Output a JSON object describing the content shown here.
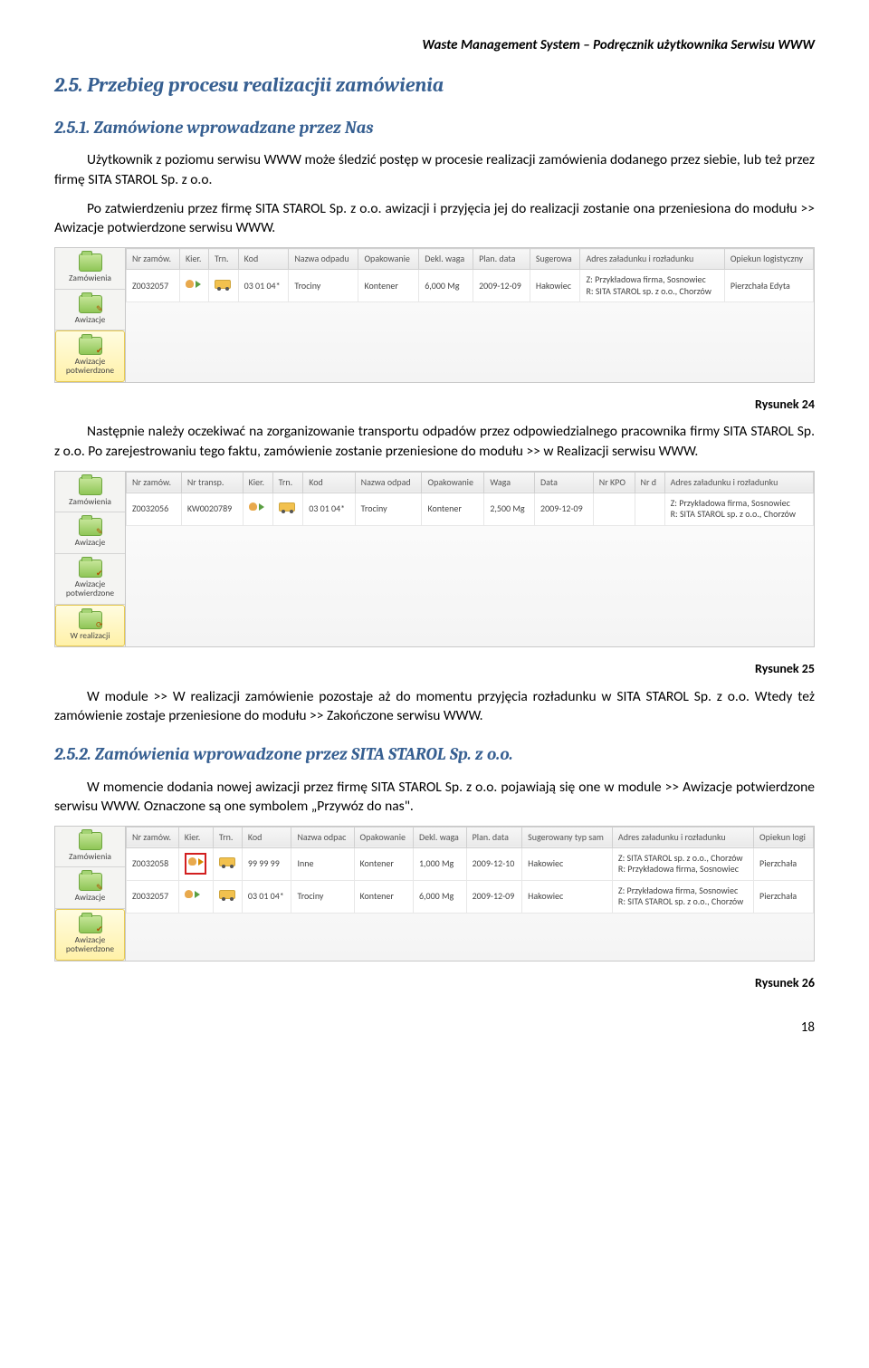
{
  "doc": {
    "header": "Waste Management System – Podręcznik użytkownika Serwisu WWW",
    "page_number": "18"
  },
  "sections": {
    "s25": "2.5. Przebieg procesu realizacjii zamówienia",
    "s251": "2.5.1. Zamówione wprowadzane przez Nas",
    "s252": "2.5.2. Zamówienia wprowadzone przez SITA STAROL Sp. z o.o."
  },
  "paragraphs": {
    "p1": "Użytkownik z poziomu serwisu WWW może śledzić postęp w procesie realizacji zamówienia dodanego przez siebie, lub też przez firmę SITA STAROL Sp. z o.o.",
    "p2": "Po zatwierdzeniu przez firmę SITA STAROL Sp. z o.o. awizacji i przyjęcia jej do realizacji zostanie ona przeniesiona do modułu >> Awizacje potwierdzone serwisu WWW.",
    "p3": "Następnie należy oczekiwać na zorganizowanie transportu odpadów przez odpowiedzialnego pracownika firmy SITA STAROL Sp. z o.o. Po zarejestrowaniu tego faktu, zamówienie zostanie przeniesione do modułu >> w Realizacji serwisu WWW.",
    "p4": "W module >> W realizacji zamówienie pozostaje aż do momentu przyjęcia rozładunku w SITA STAROL Sp. z o.o. Wtedy też zamówienie zostaje przeniesione do modułu >> Zakończone serwisu WWW.",
    "p5": "W momencie dodania nowej awizacji przez firmę SITA STAROL Sp. z o.o. pojawiają się one w module >> Awizacje potwierdzone serwisu WWW. Oznaczone są one symbolem „Przywóz do nas\"."
  },
  "captions": {
    "c24": "Rysunek 24",
    "c25": "Rysunek 25",
    "c26": "Rysunek 26"
  },
  "tabs": {
    "zamowienia": "Zamówienia",
    "awizacje": "Awizacje",
    "awizacje_potw": "Awizacje potwierdzone",
    "w_realizacji": "W realizacji"
  },
  "shot1": {
    "columns": [
      "Nr zamów.",
      "Kier.",
      "Trn.",
      "Kod",
      "Nazwa odpadu",
      "Opakowanie",
      "Dekl. waga",
      "Plan. data",
      "Sugerowa",
      "Adres załadunku i rozładunku",
      "Opiekun logistyczny"
    ],
    "row": {
      "nr": "Z0032057",
      "kod": "03 01 04*",
      "nazwa": "Trociny",
      "opak": "Kontener",
      "waga": "6,000 Mg",
      "data": "2009-12-09",
      "sug": "Hakowiec",
      "addr": "Z: Przykładowa firma, Sosnowiec\nR: SITA STAROL sp. z o.o., Chorzów",
      "opiekun": "Pierzchała Edyta"
    }
  },
  "shot2": {
    "columns": [
      "Nr zamów.",
      "Nr transp.",
      "Kier.",
      "Trn.",
      "Kod",
      "Nazwa odpad",
      "Opakowanie",
      "Waga",
      "Data",
      "Nr KPO",
      "Nr d",
      "Adres załadunku i rozładunku"
    ],
    "row": {
      "nr": "Z0032056",
      "transp": "KW0020789",
      "kod": "03 01 04*",
      "nazwa": "Trociny",
      "opak": "Kontener",
      "waga": "2,500 Mg",
      "data": "2009-12-09",
      "addr": "Z: Przykładowa firma, Sosnowiec\nR: SITA STAROL sp. z o.o., Chorzów"
    }
  },
  "shot3": {
    "columns": [
      "Nr zamów.",
      "Kier.",
      "Trn.",
      "Kod",
      "Nazwa odpac",
      "Opakowanie",
      "Dekl. waga",
      "Plan. data",
      "Sugerowany typ sam",
      "Adres załadunku i rozładunku",
      "Opiekun logi"
    ],
    "rows": [
      {
        "nr": "Z0032058",
        "kod": "99 99 99",
        "nazwa": "Inne",
        "opak": "Kontener",
        "waga": "1,000 Mg",
        "data": "2009-12-10",
        "sug": "Hakowiec",
        "addr": "Z: SITA STAROL sp. z o.o., Chorzów\nR: Przykładowa firma, Sosnowiec",
        "opiekun": "Pierzchała",
        "hl": true
      },
      {
        "nr": "Z0032057",
        "kod": "03 01 04*",
        "nazwa": "Trociny",
        "opak": "Kontener",
        "waga": "6,000 Mg",
        "data": "2009-12-09",
        "sug": "Hakowiec",
        "addr": "Z: Przykładowa firma, Sosnowiec\nR: SITA STAROL sp. z o.o., Chorzów",
        "opiekun": "Pierzchała",
        "hl": false
      }
    ]
  }
}
